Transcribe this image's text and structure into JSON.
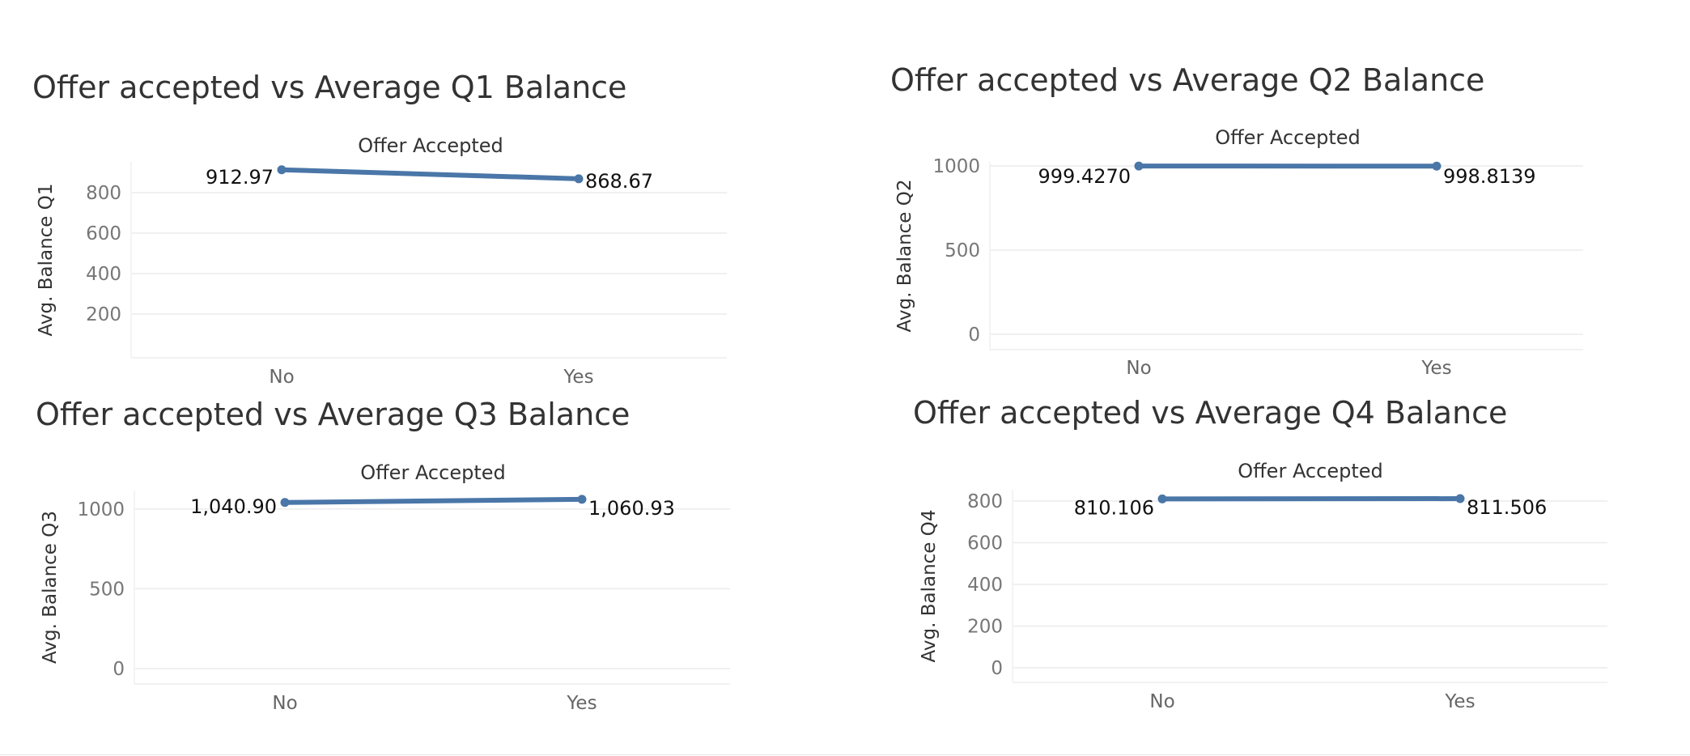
{
  "page": {
    "background": "#ffffff",
    "line_color": "#4a76a8",
    "grid_color": "#ececec"
  },
  "chart_data": [
    {
      "type": "line",
      "title": "Offer accepted vs Average Q1 Balance",
      "header": "Offer Accepted",
      "xlabel": "",
      "ylabel": "Avg. Balance Q1",
      "categories": [
        "No",
        "Yes"
      ],
      "values": [
        912.97,
        868.67
      ],
      "value_labels": [
        "912.97",
        "868.67"
      ],
      "yticks": [
        200,
        400,
        600,
        800
      ],
      "ytick_labels": [
        "200",
        "400",
        "600",
        "800"
      ],
      "ylim": [
        0,
        1000
      ],
      "grid": true
    },
    {
      "type": "line",
      "title": "Offer accepted vs Average Q2 Balance",
      "header": "Offer Accepted",
      "xlabel": "",
      "ylabel": "Avg. Balance Q2",
      "categories": [
        "No",
        "Yes"
      ],
      "values": [
        999.427,
        998.8139
      ],
      "value_labels": [
        "999.4270",
        "998.8139"
      ],
      "yticks": [
        0,
        500,
        1000
      ],
      "ytick_labels": [
        "0",
        "500",
        "1000"
      ],
      "ylim": [
        0,
        1000
      ],
      "grid": true
    },
    {
      "type": "line",
      "title": "Offer accepted vs Average Q3 Balance",
      "header": "Offer Accepted",
      "xlabel": "",
      "ylabel": "Avg. Balance Q3",
      "categories": [
        "No",
        "Yes"
      ],
      "values": [
        1040.9,
        1060.93
      ],
      "value_labels": [
        "1,040.90",
        "1,060.93"
      ],
      "yticks": [
        0,
        500,
        1000
      ],
      "ytick_labels": [
        "0",
        "500",
        "1000"
      ],
      "ylim": [
        0,
        1050
      ],
      "grid": true
    },
    {
      "type": "line",
      "title": "Offer accepted vs Average Q4 Balance",
      "header": "Offer Accepted",
      "xlabel": "",
      "ylabel": "Avg. Balance Q4",
      "categories": [
        "No",
        "Yes"
      ],
      "values": [
        810.106,
        811.506
      ],
      "value_labels": [
        "810.106",
        "811.506"
      ],
      "yticks": [
        0,
        200,
        400,
        600,
        800
      ],
      "ytick_labels": [
        "0",
        "200",
        "400",
        "600",
        "800"
      ],
      "ylim": [
        0,
        800
      ],
      "grid": true
    }
  ]
}
